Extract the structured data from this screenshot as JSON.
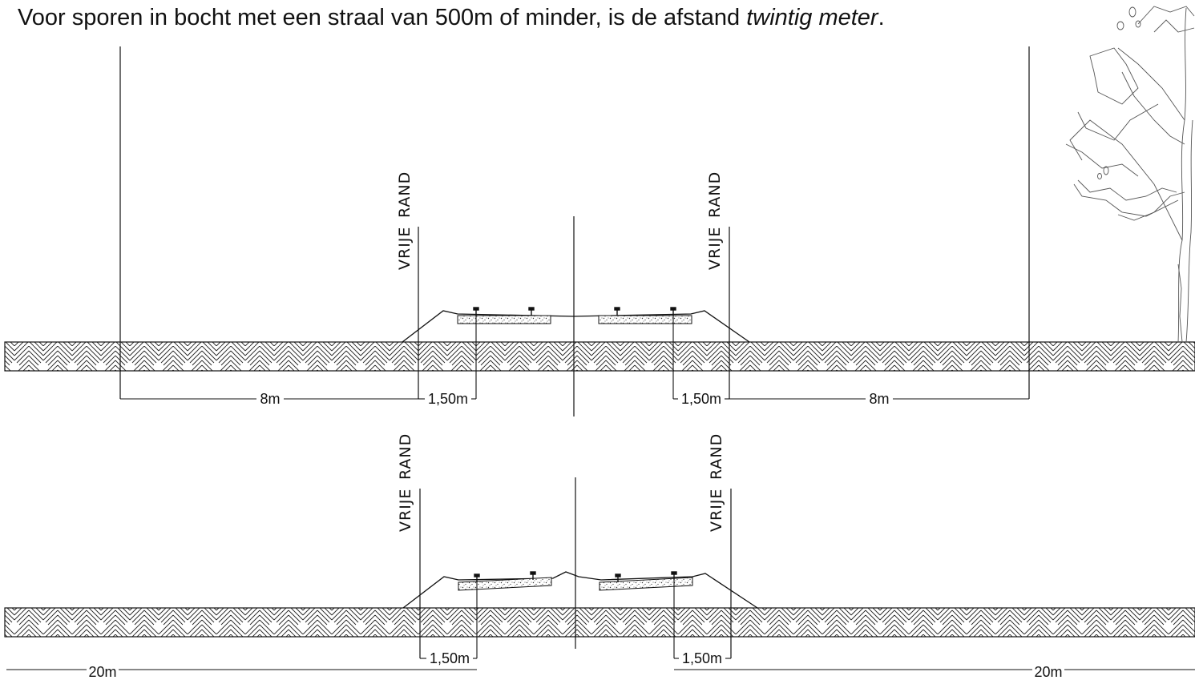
{
  "heading": {
    "before": "Voor sporen in bocht met een straal van 500m of minder, is de afstand ",
    "emphasis": "twintig meter",
    "after": "."
  },
  "labels": {
    "vrije": "VRIJE",
    "rand": "RAND"
  },
  "top_section": {
    "dim_left": "8m",
    "dim_inner_left": "1,50m",
    "dim_inner_right": "1,50m",
    "dim_right": "8m"
  },
  "bottom_section": {
    "dim_inner_left": "1,50m",
    "dim_inner_right": "1,50m",
    "dim_left": "20m",
    "dim_right": "20m"
  },
  "colors": {
    "ink": "#111111",
    "background": "#ffffff",
    "tree": "#555555"
  }
}
